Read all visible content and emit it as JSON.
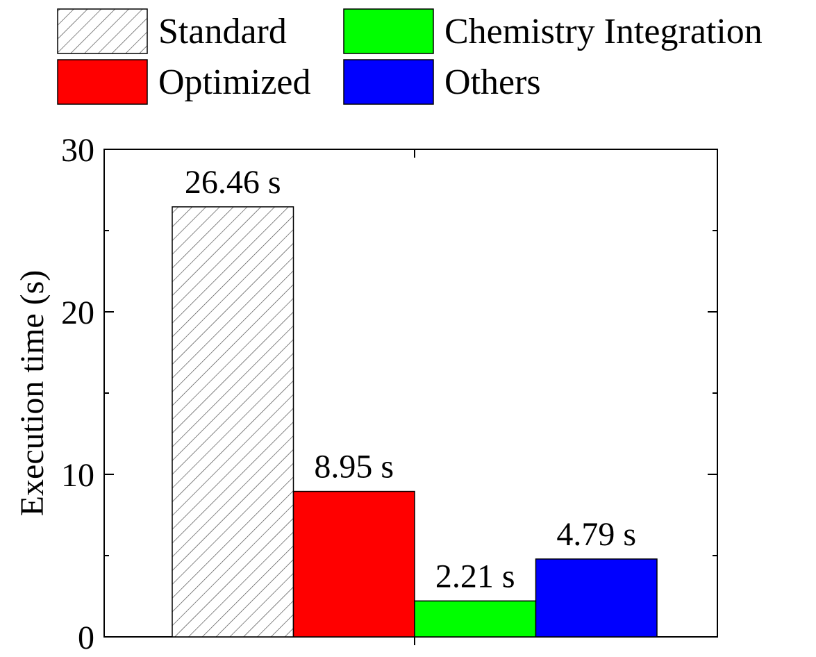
{
  "chart_data": {
    "type": "bar",
    "ylabel": "Execution time (s)",
    "ylim": [
      0,
      30
    ],
    "yticks_major": [
      0,
      10,
      20,
      30
    ],
    "yticks_minor": [
      5,
      15,
      25
    ],
    "grid": false,
    "legend_position": "top",
    "series": [
      {
        "name": "Standard",
        "value": 26.46,
        "label": "26.46 s",
        "color": "#ffffff",
        "pattern": "diagonal-hatch"
      },
      {
        "name": "Optimized",
        "value": 8.95,
        "label": "8.95 s",
        "color": "#ff0000",
        "pattern": "solid"
      },
      {
        "name": "Chemistry Integration",
        "value": 2.21,
        "label": "2.21 s",
        "color": "#00ff00",
        "pattern": "solid"
      },
      {
        "name": "Others",
        "value": 4.79,
        "label": "4.79 s",
        "color": "#0000ff",
        "pattern": "solid"
      }
    ]
  }
}
